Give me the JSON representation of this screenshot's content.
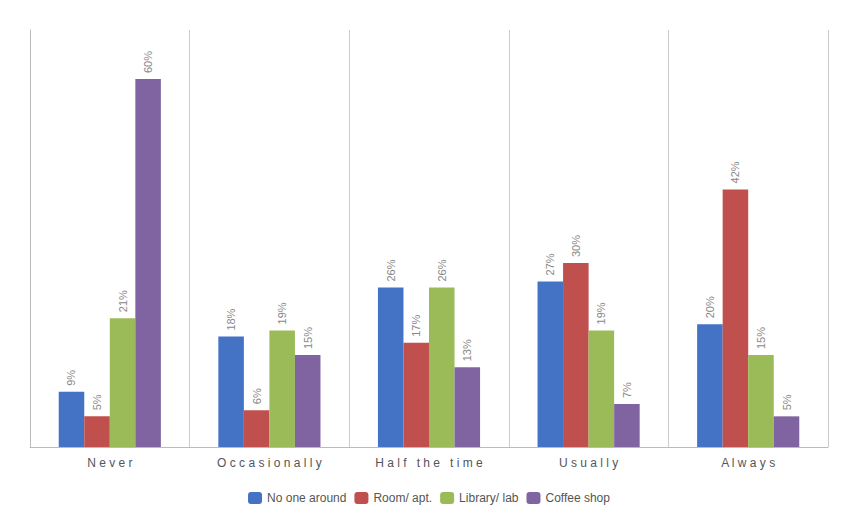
{
  "chart_data": {
    "type": "bar",
    "categories": [
      "N e v e r",
      "O c c a s i o n a l l y",
      "H a l f   t h e   t i m e",
      "U s u a l l y",
      "A l w a y s"
    ],
    "series": [
      {
        "name": "No one around",
        "color": "#4472C4",
        "values": [
          9,
          18,
          26,
          27,
          20
        ],
        "value_labels": [
          "9%",
          "18%",
          "26%",
          "27%",
          "20%"
        ]
      },
      {
        "name": "Room/ apt.",
        "color": "#C0504D",
        "values": [
          5,
          6,
          17,
          30,
          42
        ],
        "value_labels": [
          "5%",
          "6%",
          "17%",
          "30%",
          "42%"
        ]
      },
      {
        "name": "Library/ lab",
        "color": "#9BBB59",
        "values": [
          21,
          19,
          26,
          19,
          15
        ],
        "value_labels": [
          "21%",
          "19%",
          "26%",
          "19%",
          "15%"
        ]
      },
      {
        "name": "Coffee shop",
        "color": "#8064A2",
        "values": [
          60,
          15,
          13,
          7,
          5
        ],
        "value_labels": [
          "60%",
          "15%",
          "13%",
          "7%",
          "5%"
        ]
      }
    ],
    "ylim": [
      0,
      68
    ],
    "data_labels": true,
    "tick_labels": "x",
    "grid": true,
    "legend": "bottom"
  }
}
